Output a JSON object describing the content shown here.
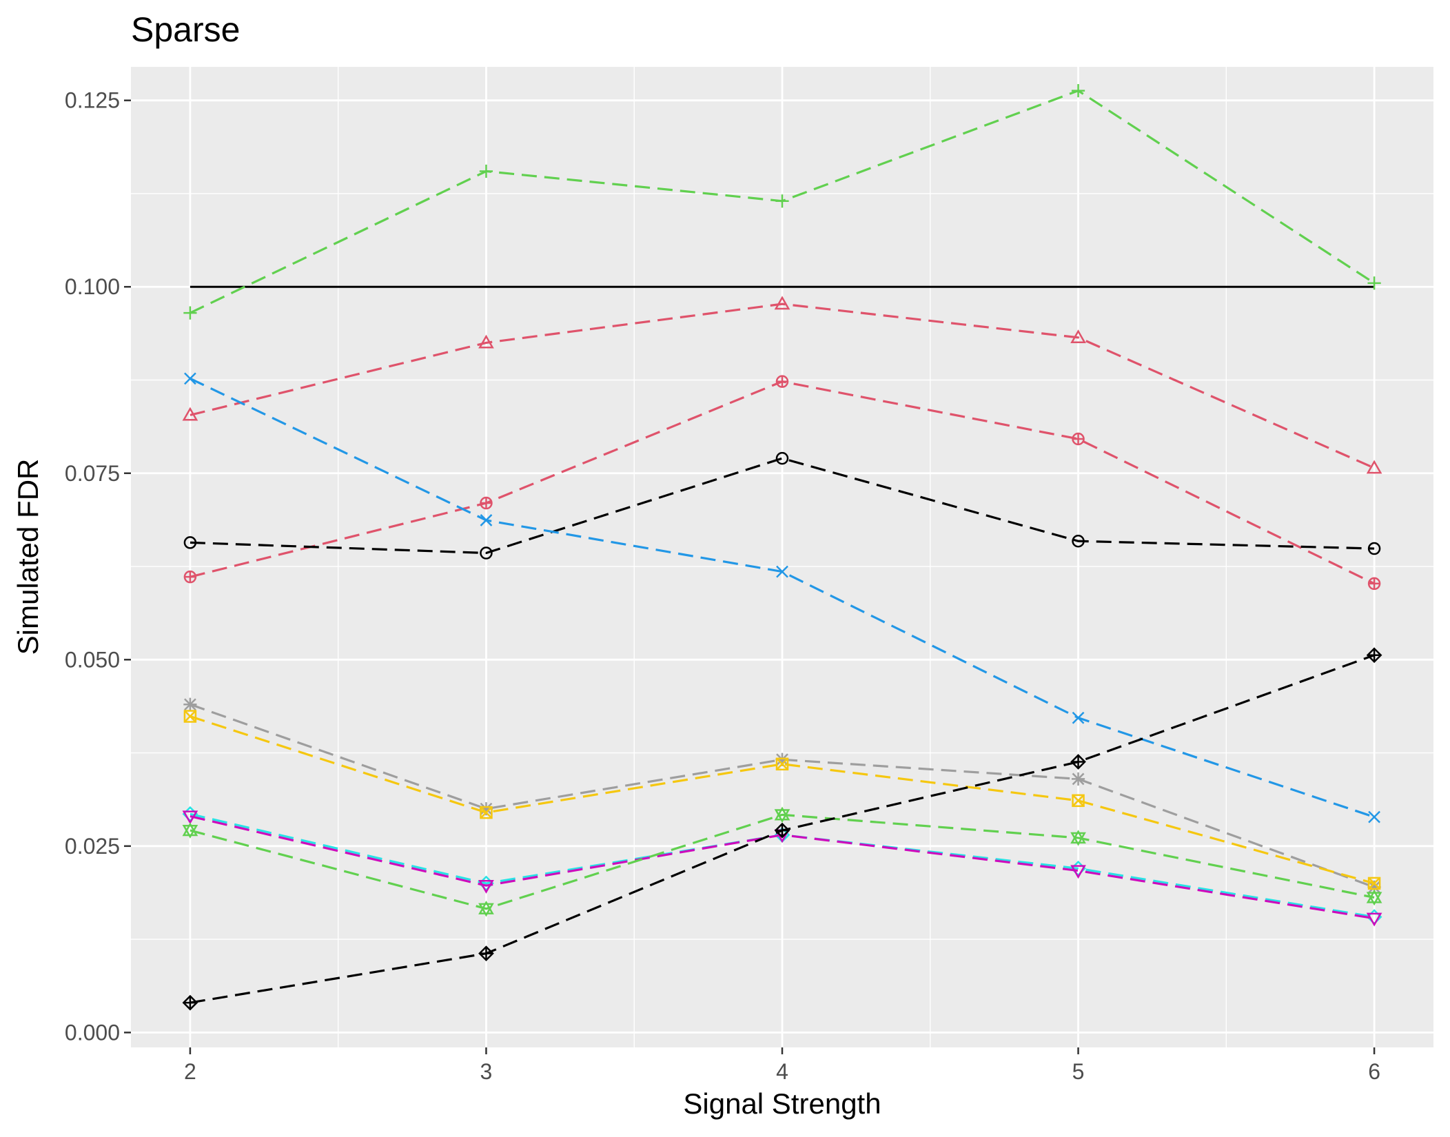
{
  "chart_data": {
    "type": "line",
    "title": "Sparse",
    "xlabel": "Signal Strength",
    "ylabel": "Simulated FDR",
    "x": [
      2,
      3,
      4,
      5,
      6
    ],
    "xlim": [
      1.8,
      6.2
    ],
    "ylim": [
      -0.002,
      0.1295
    ],
    "xticks": [
      2,
      3,
      4,
      5,
      6
    ],
    "xtick_labels": [
      "2",
      "3",
      "4",
      "5",
      "6"
    ],
    "yticks": [
      0,
      0.025,
      0.05,
      0.075,
      0.1,
      0.125
    ],
    "ytick_labels": [
      "0.000",
      "0.025",
      "0.050",
      "0.075",
      "0.100",
      "0.125"
    ],
    "grid": true,
    "reference_line": {
      "y": 0.1,
      "x": [
        2,
        6
      ],
      "color": "#000000"
    },
    "series": [
      {
        "name": "series-green-plus",
        "color": "#61D04F",
        "marker": "plus",
        "values": [
          0.0965,
          0.1155,
          0.1115,
          0.1263,
          0.1005
        ]
      },
      {
        "name": "series-red-triangle",
        "color": "#DF536B",
        "marker": "triangle",
        "values": [
          0.0828,
          0.0925,
          0.0977,
          0.0932,
          0.0757
        ]
      },
      {
        "name": "series-red-circleplus",
        "color": "#DF536B",
        "marker": "circle-plus",
        "values": [
          0.0611,
          0.071,
          0.0873,
          0.0796,
          0.0602
        ]
      },
      {
        "name": "series-black-circle",
        "color": "#000000",
        "marker": "circle",
        "values": [
          0.0657,
          0.0643,
          0.077,
          0.0659,
          0.0649
        ]
      },
      {
        "name": "series-blue-x",
        "color": "#2297E6",
        "marker": "x",
        "values": [
          0.0877,
          0.0687,
          0.0618,
          0.0422,
          0.0289
        ]
      },
      {
        "name": "series-gray-asterisk",
        "color": "#9E9E9E",
        "marker": "asterisk",
        "values": [
          0.044,
          0.03,
          0.0366,
          0.034,
          0.0195
        ]
      },
      {
        "name": "series-yellow-squarex",
        "color": "#F5C710",
        "marker": "square-x",
        "values": [
          0.0424,
          0.0295,
          0.036,
          0.0311,
          0.02
        ]
      },
      {
        "name": "series-cyan-diamond",
        "color": "#28E2E5",
        "marker": "diamond",
        "values": [
          0.0293,
          0.02,
          0.0265,
          0.022,
          0.0155
        ]
      },
      {
        "name": "series-magenta-triangledown",
        "color": "#CD0BBC",
        "marker": "triangle-down",
        "values": [
          0.029,
          0.0197,
          0.0265,
          0.0217,
          0.0153
        ]
      },
      {
        "name": "series-green-star",
        "color": "#61D04F",
        "marker": "star",
        "values": [
          0.0271,
          0.0166,
          0.0292,
          0.0261,
          0.0181
        ]
      },
      {
        "name": "series-black-diamondplus",
        "color": "#000000",
        "marker": "diamond-plus",
        "values": [
          0.004,
          0.0106,
          0.0271,
          0.0363,
          0.0506
        ]
      }
    ]
  }
}
